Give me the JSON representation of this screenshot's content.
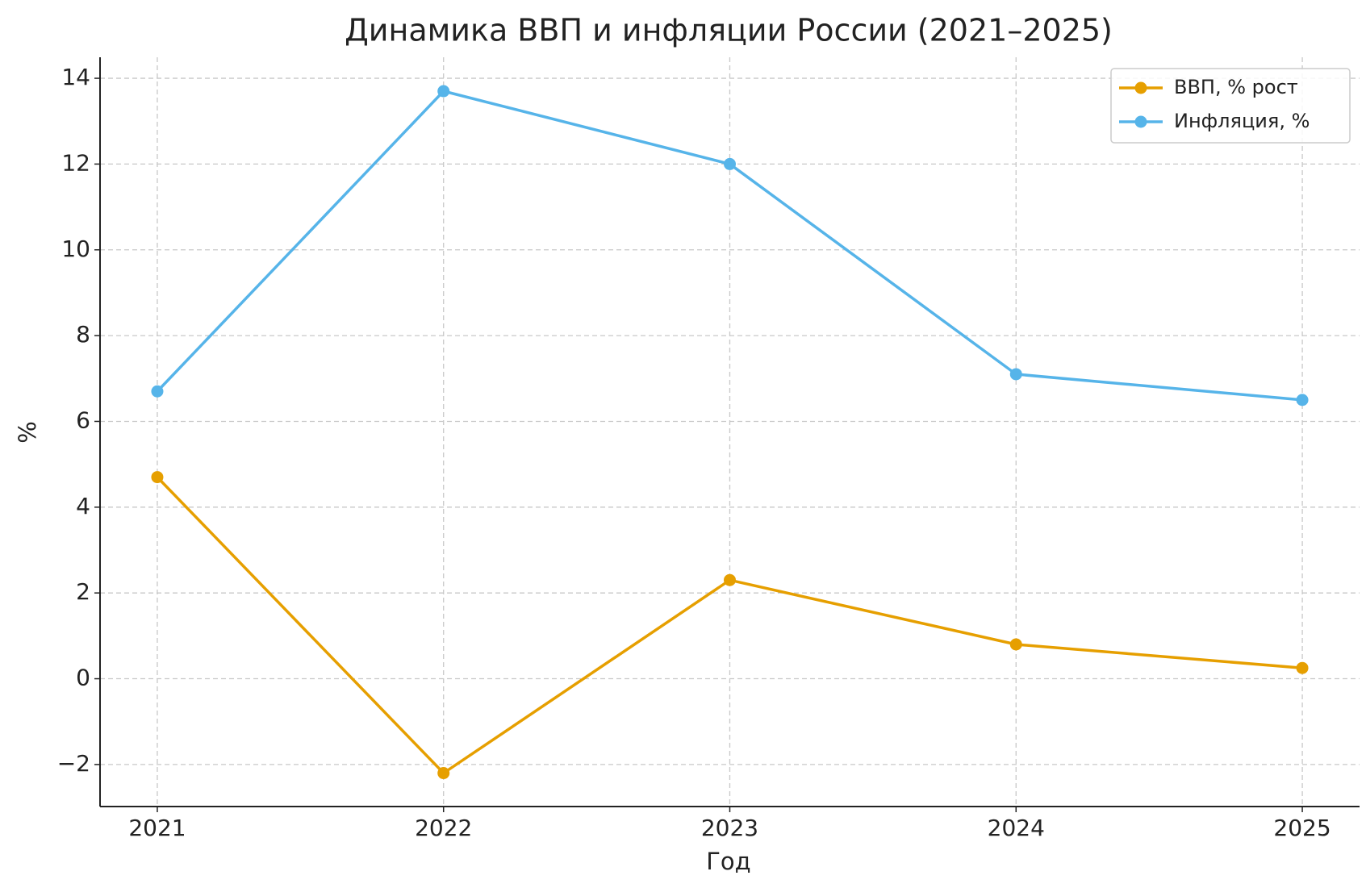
{
  "chart_data": {
    "type": "line",
    "title": "Динамика ВВП и инфляции России (2021–2025)",
    "x_label": "Год",
    "y_label": "%",
    "x": [
      2021,
      2022,
      2023,
      2024,
      2025
    ],
    "series": [
      {
        "name": "ВВП, % рост",
        "color": "#e69f00",
        "values": [
          4.7,
          -2.2,
          2.3,
          0.8,
          0.25
        ]
      },
      {
        "name": "Инфляция, %",
        "color": "#56b4e9",
        "values": [
          6.7,
          13.7,
          12.0,
          7.1,
          6.5
        ]
      }
    ],
    "xlim": [
      2020.8,
      2025.2
    ],
    "xticks": [
      2021,
      2022,
      2023,
      2024,
      2025
    ],
    "ylim": [
      -2.98,
      14.49
    ],
    "yticks": [
      {
        "value": -2,
        "label": "−2"
      },
      0,
      2,
      4,
      6,
      8,
      10,
      12,
      14
    ],
    "grid": true,
    "legend": "upper right"
  }
}
